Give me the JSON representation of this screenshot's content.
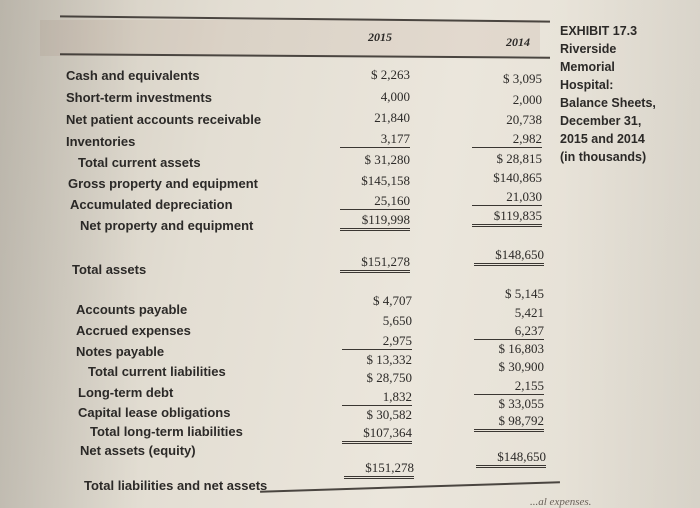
{
  "exhibit": {
    "number": "EXHIBIT 17.3",
    "title_lines": [
      "Riverside",
      "Memorial",
      "Hospital:",
      "Balance Sheets,",
      "December 31,",
      "2015 and 2014",
      "(in thousands)"
    ]
  },
  "columns": {
    "y2015": "2015",
    "y2014": "2014"
  },
  "rows": [
    {
      "label": "Cash and equivalents",
      "v2015": "$  2,263",
      "v2014": "$  3,095"
    },
    {
      "label": "Short-term investments",
      "v2015": "4,000",
      "v2014": "2,000"
    },
    {
      "label": "Net patient accounts receivable",
      "v2015": "21,840",
      "v2014": "20,738"
    },
    {
      "label": "Inventories",
      "v2015": "3,177",
      "v2014": "2,982"
    },
    {
      "label": "Total current assets",
      "v2015": "$ 31,280",
      "v2014": "$ 28,815"
    },
    {
      "label": "Gross property and equipment",
      "v2015": "$145,158",
      "v2014": "$140,865"
    },
    {
      "label": "Accumulated depreciation",
      "v2015": "25,160",
      "v2014": "21,030"
    },
    {
      "label": "Net property and equipment",
      "v2015": "$119,998",
      "v2014": "$119,835"
    },
    {
      "label": "Total assets",
      "v2015": "$151,278",
      "v2014": "$148,650"
    },
    {
      "label": "Accounts payable",
      "v2015": "$  4,707",
      "v2014": "$  5,145"
    },
    {
      "label": "Accrued expenses",
      "v2015": "5,650",
      "v2014": "5,421"
    },
    {
      "label": "Notes payable",
      "v2015": "2,975",
      "v2014": "6,237"
    },
    {
      "label": "Total current liabilities",
      "v2015": "$ 13,332",
      "v2014": "$ 16,803"
    },
    {
      "label": "Long-term debt",
      "v2015": "$ 28,750",
      "v2014": "$ 30,900"
    },
    {
      "label": "Capital lease obligations",
      "v2015": "1,832",
      "v2014": "2,155"
    },
    {
      "label": "Total long-term liabilities",
      "v2015": "$ 30,582",
      "v2014": "$ 33,055"
    },
    {
      "label": "Net assets (equity)",
      "v2015": "$107,364",
      "v2014": "$ 98,792"
    },
    {
      "label": "Total liabilities and net assets",
      "v2015": "$151,278",
      "v2014": "$148,650"
    }
  ],
  "footer_fragment": "...al expenses."
}
